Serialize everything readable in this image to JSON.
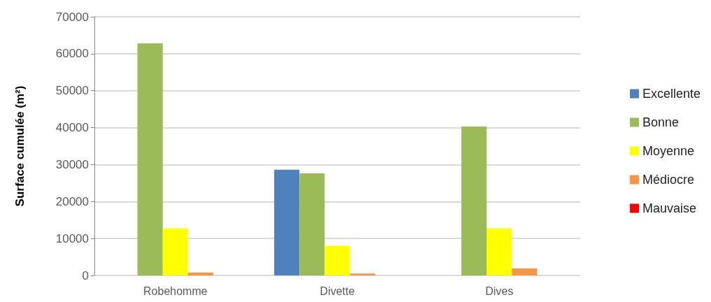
{
  "chart_data": {
    "type": "bar",
    "ylabel": "Surface cumulée (m²)",
    "categories": [
      "Robehomme",
      "Divette",
      "Dives"
    ],
    "series": [
      {
        "name": "Excellente",
        "color": "#4f81bd",
        "values": [
          0,
          28600,
          0
        ]
      },
      {
        "name": "Bonne",
        "color": "#9bbb59",
        "values": [
          62800,
          27600,
          40300
        ]
      },
      {
        "name": "Moyenne",
        "color": "#ffff00",
        "values": [
          12700,
          8000,
          12700
        ]
      },
      {
        "name": "Médiocre",
        "color": "#f79646",
        "values": [
          800,
          500,
          1900
        ]
      },
      {
        "name": "Mauvaise",
        "color": "#ff0000",
        "values": [
          0,
          0,
          0
        ]
      }
    ],
    "ylim": [
      0,
      70000
    ],
    "yticks": [
      0,
      10000,
      20000,
      30000,
      40000,
      50000,
      60000,
      70000
    ],
    "grid": "y",
    "legend": "right"
  }
}
